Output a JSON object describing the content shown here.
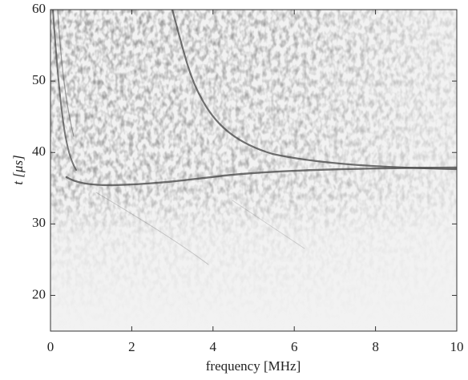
{
  "chart_data": {
    "type": "image",
    "xlabel": "frequency [MHz]",
    "ylabel": "t [μs]",
    "xlim": [
      0,
      10
    ],
    "ylim": [
      15,
      60
    ],
    "xticks": [
      0,
      2,
      4,
      6,
      8,
      10
    ],
    "yticks": [
      20,
      30,
      40,
      50,
      60
    ]
  }
}
